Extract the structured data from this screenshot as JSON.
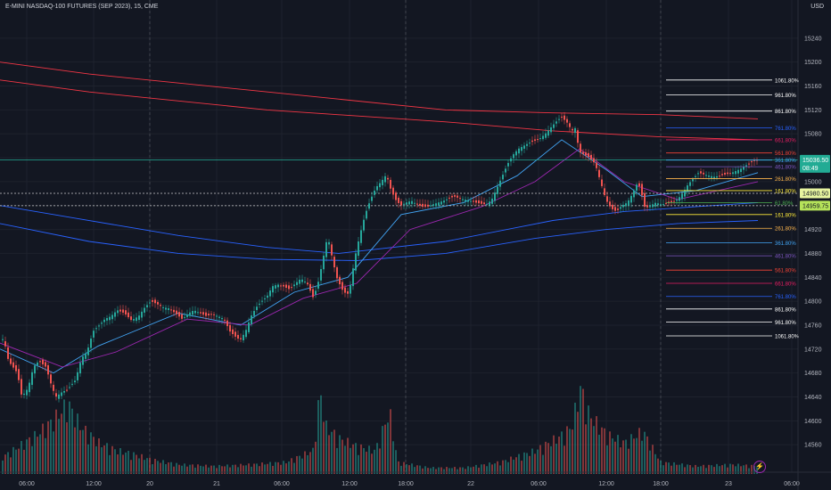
{
  "header": {
    "symbol_title": "E-MINI NASDAQ-100 FUTURES (SEP 2023), 15, CME",
    "currency": "USD"
  },
  "chart_data": {
    "type": "candlestick",
    "title": "E-MINI NASDAQ-100 FUTURES (SEP 2023), 15, CME",
    "y_range": [
      14520,
      15280
    ],
    "y_ticks": [
      15240,
      15200,
      15160,
      15120,
      15080,
      15040,
      15000,
      14960,
      14920,
      14880,
      14840,
      14800,
      14760,
      14720,
      14680,
      14640,
      14600,
      14560
    ],
    "x_ticks": [
      "06:00",
      "12:00",
      "20",
      "21",
      "06:00",
      "12:00",
      "18:00",
      "22",
      "06:00",
      "12:00",
      "18:00",
      "23",
      "06:00"
    ],
    "session_separators": [
      "20",
      "21",
      "22",
      "23"
    ],
    "price_path": [
      [
        0,
        14740
      ],
      [
        5,
        14735
      ],
      [
        10,
        14700
      ],
      [
        15,
        14690
      ],
      [
        20,
        14680
      ],
      [
        25,
        14640
      ],
      [
        32,
        14655
      ],
      [
        38,
        14690
      ],
      [
        44,
        14700
      ],
      [
        52,
        14690
      ],
      [
        58,
        14660
      ],
      [
        63,
        14640
      ],
      [
        70,
        14648
      ],
      [
        76,
        14652
      ],
      [
        85,
        14668
      ],
      [
        92,
        14705
      ],
      [
        98,
        14715
      ],
      [
        105,
        14750
      ],
      [
        112,
        14760
      ],
      [
        118,
        14770
      ],
      [
        125,
        14775
      ],
      [
        132,
        14785
      ],
      [
        140,
        14780
      ],
      [
        148,
        14768
      ],
      [
        156,
        14775
      ],
      [
        163,
        14790
      ],
      [
        170,
        14800
      ],
      [
        177,
        14795
      ],
      [
        183,
        14790
      ],
      [
        190,
        14788
      ],
      [
        197,
        14780
      ],
      [
        205,
        14770
      ],
      [
        212,
        14780
      ],
      [
        218,
        14785
      ],
      [
        225,
        14780
      ],
      [
        232,
        14775
      ],
      [
        238,
        14778
      ],
      [
        245,
        14775
      ],
      [
        252,
        14770
      ],
      [
        258,
        14750
      ],
      [
        265,
        14740
      ],
      [
        270,
        14735
      ],
      [
        276,
        14750
      ],
      [
        282,
        14775
      ],
      [
        288,
        14790
      ],
      [
        294,
        14800
      ],
      [
        300,
        14808
      ],
      [
        306,
        14825
      ],
      [
        312,
        14828
      ],
      [
        318,
        14825
      ],
      [
        325,
        14820
      ],
      [
        332,
        14830
      ],
      [
        338,
        14838
      ],
      [
        345,
        14830
      ],
      [
        352,
        14805
      ],
      [
        358,
        14835
      ],
      [
        364,
        14880
      ],
      [
        368,
        14910
      ],
      [
        372,
        14880
      ],
      [
        378,
        14840
      ],
      [
        384,
        14820
      ],
      [
        390,
        14810
      ],
      [
        394,
        14830
      ],
      [
        398,
        14870
      ],
      [
        404,
        14910
      ],
      [
        410,
        14945
      ],
      [
        416,
        14970
      ],
      [
        422,
        14990
      ],
      [
        428,
        15000
      ],
      [
        434,
        15012
      ],
      [
        438,
        14990
      ],
      [
        444,
        14970
      ],
      [
        450,
        14960
      ],
      [
        456,
        14965
      ],
      [
        462,
        14968
      ],
      [
        468,
        14962
      ],
      [
        474,
        14958
      ],
      [
        480,
        14958
      ],
      [
        486,
        14962
      ],
      [
        492,
        14965
      ],
      [
        498,
        14968
      ],
      [
        504,
        14972
      ],
      [
        510,
        14975
      ],
      [
        516,
        14972
      ],
      [
        522,
        14970
      ],
      [
        528,
        14968
      ],
      [
        534,
        14965
      ],
      [
        540,
        14963
      ],
      [
        546,
        14962
      ],
      [
        552,
        14970
      ],
      [
        558,
        14990
      ],
      [
        564,
        15010
      ],
      [
        570,
        15030
      ],
      [
        576,
        15045
      ],
      [
        582,
        15055
      ],
      [
        588,
        15060
      ],
      [
        594,
        15065
      ],
      [
        600,
        15068
      ],
      [
        606,
        15072
      ],
      [
        612,
        15080
      ],
      [
        618,
        15090
      ],
      [
        624,
        15100
      ],
      [
        630,
        15108
      ],
      [
        636,
        15100
      ],
      [
        642,
        15085
      ],
      [
        646,
        15090
      ],
      [
        650,
        15050
      ],
      [
        656,
        15045
      ],
      [
        662,
        15040
      ],
      [
        668,
        15030
      ],
      [
        674,
        15000
      ],
      [
        680,
        14970
      ],
      [
        686,
        14955
      ],
      [
        692,
        14950
      ],
      [
        698,
        14960
      ],
      [
        704,
        14965
      ],
      [
        710,
        14980
      ],
      [
        716,
        15000
      ],
      [
        720,
        14980
      ],
      [
        724,
        14955
      ],
      [
        730,
        14960
      ],
      [
        736,
        14965
      ],
      [
        742,
        14962
      ],
      [
        748,
        14963
      ],
      [
        754,
        14965
      ],
      [
        760,
        14970
      ],
      [
        766,
        14980
      ],
      [
        772,
        14995
      ],
      [
        778,
        15005
      ],
      [
        784,
        15015
      ],
      [
        790,
        15012
      ],
      [
        796,
        15010
      ],
      [
        802,
        15008
      ],
      [
        808,
        15010
      ],
      [
        814,
        15012
      ],
      [
        820,
        15014
      ],
      [
        826,
        15018
      ],
      [
        832,
        15022
      ],
      [
        838,
        15028
      ],
      [
        844,
        15033
      ],
      [
        850,
        15036.5
      ]
    ],
    "volume_path": [
      [
        0,
        20
      ],
      [
        20,
        35
      ],
      [
        40,
        50
      ],
      [
        60,
        70
      ],
      [
        75,
        90
      ],
      [
        90,
        60
      ],
      [
        110,
        40
      ],
      [
        130,
        30
      ],
      [
        150,
        25
      ],
      [
        170,
        18
      ],
      [
        200,
        12
      ],
      [
        240,
        10
      ],
      [
        280,
        12
      ],
      [
        320,
        15
      ],
      [
        350,
        30
      ],
      [
        358,
        105
      ],
      [
        365,
        60
      ],
      [
        380,
        45
      ],
      [
        400,
        35
      ],
      [
        420,
        30
      ],
      [
        436,
        80
      ],
      [
        445,
        15
      ],
      [
        480,
        8
      ],
      [
        520,
        8
      ],
      [
        560,
        15
      ],
      [
        600,
        30
      ],
      [
        630,
        50
      ],
      [
        640,
        60
      ],
      [
        650,
        110
      ],
      [
        660,
        75
      ],
      [
        680,
        50
      ],
      [
        700,
        40
      ],
      [
        720,
        55
      ],
      [
        740,
        15
      ],
      [
        780,
        10
      ],
      [
        820,
        12
      ],
      [
        850,
        10
      ]
    ],
    "ma_lines": [
      {
        "color": "#f23645",
        "path": [
          [
            0,
            15200
          ],
          [
            100,
            15180
          ],
          [
            300,
            15150
          ],
          [
            500,
            15120
          ],
          [
            620,
            15115
          ],
          [
            740,
            15112
          ],
          [
            850,
            15105
          ]
        ]
      },
      {
        "color": "#f23645",
        "path": [
          [
            0,
            15170
          ],
          [
            100,
            15150
          ],
          [
            300,
            15120
          ],
          [
            500,
            15100
          ],
          [
            620,
            15085
          ],
          [
            740,
            15075
          ],
          [
            850,
            15070
          ]
        ]
      },
      {
        "color": "#2962ff",
        "path": [
          [
            0,
            14960
          ],
          [
            80,
            14940
          ],
          [
            200,
            14910
          ],
          [
            300,
            14890
          ],
          [
            380,
            14880
          ],
          [
            500,
            14900
          ],
          [
            620,
            14935
          ],
          [
            700,
            14950
          ],
          [
            800,
            14960
          ],
          [
            850,
            14965
          ]
        ]
      },
      {
        "color": "#2962ff",
        "path": [
          [
            0,
            14930
          ],
          [
            100,
            14900
          ],
          [
            200,
            14880
          ],
          [
            300,
            14870
          ],
          [
            400,
            14868
          ],
          [
            500,
            14880
          ],
          [
            600,
            14905
          ],
          [
            680,
            14920
          ],
          [
            760,
            14930
          ],
          [
            850,
            14935
          ]
        ]
      },
      {
        "color": "#42a5f5",
        "path": [
          [
            0,
            14720
          ],
          [
            60,
            14680
          ],
          [
            110,
            14725
          ],
          [
            200,
            14780
          ],
          [
            270,
            14760
          ],
          [
            330,
            14815
          ],
          [
            390,
            14840
          ],
          [
            450,
            14945
          ],
          [
            520,
            14965
          ],
          [
            580,
            15010
          ],
          [
            630,
            15070
          ],
          [
            680,
            15020
          ],
          [
            720,
            14975
          ],
          [
            780,
            14985
          ],
          [
            850,
            15015
          ]
        ]
      },
      {
        "color": "#9c27b0",
        "path": [
          [
            0,
            14730
          ],
          [
            70,
            14690
          ],
          [
            130,
            14715
          ],
          [
            210,
            14770
          ],
          [
            280,
            14760
          ],
          [
            340,
            14805
          ],
          [
            400,
            14830
          ],
          [
            460,
            14920
          ],
          [
            540,
            14958
          ],
          [
            600,
            15000
          ],
          [
            650,
            15055
          ],
          [
            700,
            15000
          ],
          [
            760,
            14970
          ],
          [
            850,
            15000
          ]
        ]
      }
    ],
    "horizontal_lines": [
      {
        "price": 15036.5,
        "color": "#22ab94",
        "style": "solid"
      },
      {
        "price": 14980.5,
        "color": "#cccccc",
        "style": "dashed"
      },
      {
        "price": 14959.75,
        "color": "#cccccc",
        "style": "dashed"
      }
    ],
    "fib_upper": [
      {
        "label": "1061.80%",
        "price": 15170,
        "color": "#ffffff"
      },
      {
        "label": "961.80%",
        "price": 15145,
        "color": "#ffffff"
      },
      {
        "label": "861.80%",
        "price": 15118,
        "color": "#ffffff"
      },
      {
        "label": "761.80%",
        "price": 15090,
        "color": "#2962ff"
      },
      {
        "label": "661.80%",
        "price": 15070,
        "color": "#e91e63"
      },
      {
        "label": "561.80%",
        "price": 15048,
        "color": "#f44336"
      },
      {
        "label": "461.80%",
        "price": 15025,
        "color": "#7e57c2"
      },
      {
        "label": "361.80%",
        "price": 15036,
        "color": "#42a5f5"
      },
      {
        "label": "261.80%",
        "price": 15005,
        "color": "#ffb74d"
      },
      {
        "label": "161.80%",
        "price": 14985,
        "color": "#ffeb3b"
      },
      {
        "label": "61.80%",
        "price": 14965,
        "color": "#4caf50"
      }
    ],
    "fib_lower": [
      {
        "label": "161.80%",
        "price": 14945,
        "color": "#ffeb3b"
      },
      {
        "label": "261.80%",
        "price": 14922,
        "color": "#ffb74d"
      },
      {
        "label": "361.80%",
        "price": 14898,
        "color": "#42a5f5"
      },
      {
        "label": "461.80%",
        "price": 14876,
        "color": "#7e57c2"
      },
      {
        "label": "561.80%",
        "price": 14852,
        "color": "#f44336"
      },
      {
        "label": "661.80%",
        "price": 14830,
        "color": "#e91e63"
      },
      {
        "label": "761.80%",
        "price": 14808,
        "color": "#2962ff"
      },
      {
        "label": "861.80%",
        "price": 14787,
        "color": "#ffffff"
      },
      {
        "label": "961.80%",
        "price": 14765,
        "color": "#ffffff"
      },
      {
        "label": "1061.80%",
        "price": 14742,
        "color": "#ffffff"
      }
    ],
    "price_labels": [
      {
        "text": "15036.50",
        "sub": "08:49",
        "price": 15036.5,
        "bg": "#22ab94",
        "fg": "#ffffff"
      },
      {
        "text": "14980.50",
        "price": 14980.5,
        "bg": "#e8f5a0",
        "fg": "#131722"
      },
      {
        "text": "14959.75",
        "price": 14959.75,
        "bg": "#b6e35a",
        "fg": "#131722"
      }
    ],
    "colors": {
      "up": "#26a69a",
      "down": "#ef5350",
      "grid": "#1e222d",
      "text": "#b2b5be"
    }
  }
}
